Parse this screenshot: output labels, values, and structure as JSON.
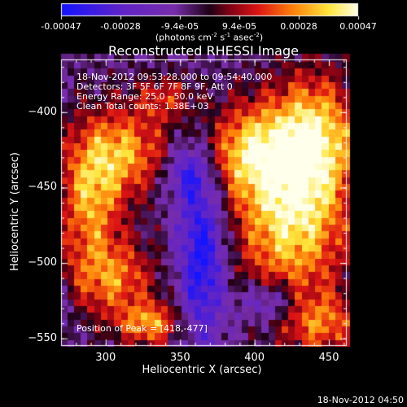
{
  "chart_data": {
    "type": "heatmap",
    "title": "Reconstructed RHESSI Image",
    "xlabel": "Heliocentric X (arcsec)",
    "ylabel": "Heliocentric Y (arcsec)",
    "xlim": [
      270,
      462
    ],
    "ylim": [
      -555,
      -365
    ],
    "x_ticks": [
      300,
      350,
      400,
      450
    ],
    "y_ticks": [
      -400,
      -450,
      -500,
      -550
    ],
    "colorbar": {
      "colormap": "blue-purple-red-yellow-white",
      "range": [
        -0.00047,
        0.00047
      ],
      "tick_labels": [
        "-0.00047",
        "-0.00028",
        "-9.4e-05",
        "9.4e-05",
        "0.00028",
        "0.00047"
      ],
      "label": "(photons cm",
      "label_exp1": "-2",
      "label_mid": " s",
      "label_exp2": "-1",
      "label_mid2": " asec",
      "label_exp3": "-2",
      "label_end": ")"
    },
    "annotations": {
      "time_range": "18-Nov-2012 09:53:28.000 to 09:54:40.000",
      "detectors": "Detectors: 3F 5F 6F 7F 8F 9F, Att 0",
      "energy_range": "Energy Range: 25.0 - 50.0 keV",
      "clean": "Clean     Total counts: 1.38E+03",
      "peak_position": "Position of Peak = [418,-477]"
    },
    "peak": [
      418,
      -477
    ],
    "timestamp": "18-Nov-2012 04:50"
  }
}
